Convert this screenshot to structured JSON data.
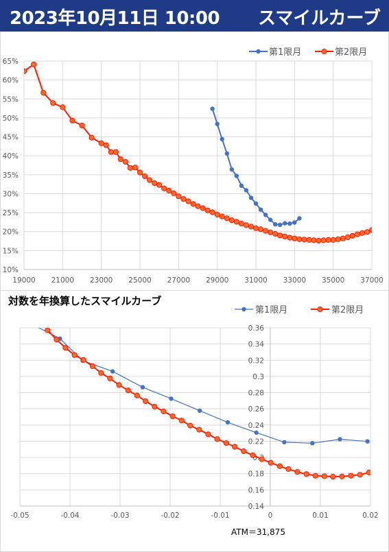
{
  "header": {
    "date": "2023年10月11日 10:00",
    "chart_name": "スマイルカーブ"
  },
  "colors": {
    "series1": "#4472c4",
    "series2": "#ff1a00",
    "header_bg": "#1f3a86"
  },
  "chart_data": [
    {
      "type": "line",
      "title": "",
      "xlim": [
        19000,
        37000
      ],
      "ylim": [
        10,
        65
      ],
      "x_ticks": [
        "19000",
        "21000",
        "23000",
        "25000",
        "27000",
        "29000",
        "31000",
        "33000",
        "35000",
        "37000"
      ],
      "y_ticks": [
        "10%",
        "15%",
        "20%",
        "25%",
        "30%",
        "35%",
        "40%",
        "45%",
        "50%",
        "55%",
        "60%",
        "65%"
      ],
      "legend": "top-right",
      "grid": true,
      "series": [
        {
          "name": "第1限月",
          "x": [
            28750,
            29000,
            29250,
            29500,
            29750,
            30000,
            30250,
            30500,
            30750,
            31000,
            31250,
            31500,
            31750,
            32000,
            32250,
            32500,
            32750,
            33000,
            33250
          ],
          "y": [
            52.4,
            48.4,
            44.4,
            40.6,
            36.4,
            34.7,
            32.1,
            30.9,
            28.9,
            27.4,
            25.8,
            24.4,
            23.1,
            21.9,
            21.8,
            22.2,
            22.1,
            22.4,
            23.5
          ]
        },
        {
          "name": "第2限月",
          "x": [
            19000,
            19500,
            20000,
            20500,
            21000,
            21500,
            22000,
            22500,
            23000,
            23250,
            23500,
            23750,
            24000,
            24250,
            24500,
            24750,
            25000,
            25250,
            25500,
            25750,
            26000,
            26250,
            26500,
            26750,
            27000,
            27250,
            27500,
            27750,
            28000,
            28250,
            28500,
            28750,
            29000,
            29250,
            29500,
            29750,
            30000,
            30250,
            30500,
            30750,
            31000,
            31250,
            31500,
            31750,
            32000,
            32250,
            32500,
            32750,
            33000,
            33250,
            33500,
            33750,
            34000,
            34250,
            34500,
            34750,
            35000,
            35250,
            35500,
            35750,
            36000,
            36250,
            36500,
            36750,
            37000
          ],
          "y": [
            62.3,
            64.1,
            56.6,
            53.9,
            52.8,
            49.3,
            48.0,
            44.8,
            43.3,
            42.8,
            41.0,
            41.0,
            39.1,
            38.4,
            36.8,
            36.9,
            35.6,
            34.6,
            33.6,
            32.8,
            32.3,
            31.4,
            30.8,
            30.1,
            29.3,
            28.6,
            28.0,
            27.3,
            26.7,
            26.2,
            25.6,
            25.1,
            24.5,
            24.0,
            23.5,
            23.0,
            22.6,
            22.1,
            21.7,
            21.3,
            20.9,
            20.6,
            20.2,
            19.8,
            19.4,
            19.0,
            18.7,
            18.4,
            18.2,
            18.0,
            17.9,
            17.8,
            17.7,
            17.6,
            17.7,
            17.8,
            17.8,
            18.0,
            18.2,
            18.5,
            18.9,
            19.3,
            19.6,
            19.9,
            20.4
          ]
        }
      ]
    },
    {
      "type": "line",
      "title": "対数を年換算したスマイルカーブ",
      "xlim": [
        -0.05,
        0.02
      ],
      "ylim": [
        0.14,
        0.36
      ],
      "x_ticks": [
        "-0.05",
        "-0.04",
        "-0.03",
        "-0.02",
        "-0.01",
        "0",
        "0.01",
        "0.02"
      ],
      "y_ticks": [
        "0.14",
        "0.16",
        "0.18",
        "0.2",
        "0.22",
        "0.24",
        "0.26",
        "0.28",
        "0.3",
        "0.32",
        "0.34",
        "0.36"
      ],
      "legend": "top-right",
      "grid": true,
      "annotation": "ATM＝31,875",
      "series": [
        {
          "name": "第1限月",
          "x": [
            -0.05,
            -0.042,
            -0.0375,
            -0.0315,
            -0.0255,
            -0.0198,
            -0.0141,
            -0.0085,
            -0.0028,
            0.0028,
            0.0084,
            0.0139,
            0.0194
          ],
          "y": [
            0.372,
            0.3466,
            0.3195,
            0.3062,
            0.2866,
            0.2725,
            0.2577,
            0.2433,
            0.2306,
            0.2188,
            0.2176,
            0.2224,
            0.2198
          ]
        },
        {
          "name": "第2限月",
          "x": [
            -0.0445,
            -0.0427,
            -0.0409,
            -0.0391,
            -0.0373,
            -0.0355,
            -0.0338,
            -0.032,
            -0.0302,
            -0.0284,
            -0.0266,
            -0.0249,
            -0.0231,
            -0.0213,
            -0.0195,
            -0.0177,
            -0.016,
            -0.0142,
            -0.0124,
            -0.0106,
            -0.0088,
            -0.0071,
            -0.0053,
            -0.0035,
            -0.0017,
            0.0001,
            0.0019,
            0.0036,
            0.0054,
            0.0072,
            0.009,
            0.0108,
            0.0125,
            0.0143,
            0.0161,
            0.0179,
            0.0197
          ],
          "y": [
            0.357,
            0.3455,
            0.3353,
            0.3263,
            0.3203,
            0.3126,
            0.3042,
            0.2975,
            0.2894,
            0.2828,
            0.2765,
            0.2695,
            0.2627,
            0.2568,
            0.2508,
            0.2456,
            0.2393,
            0.2343,
            0.2286,
            0.2227,
            0.2177,
            0.2132,
            0.2076,
            0.2027,
            0.1979,
            0.1935,
            0.1892,
            0.1857,
            0.1821,
            0.1794,
            0.1774,
            0.1768,
            0.1763,
            0.1765,
            0.1775,
            0.1787,
            0.1815
          ]
        }
      ]
    }
  ]
}
